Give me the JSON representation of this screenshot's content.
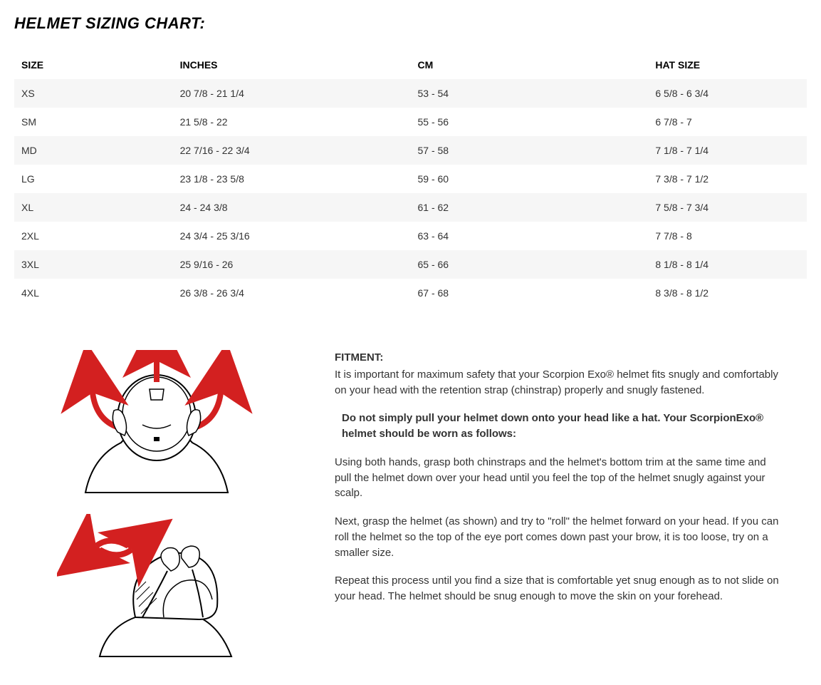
{
  "title": "HELMET SIZING CHART:",
  "table": {
    "columns": [
      "SIZE",
      "INCHES",
      "CM",
      "HAT SIZE"
    ],
    "rows": [
      [
        "XS",
        "20 7/8 - 21 1/4",
        "53 - 54",
        "6 5/8 - 6 3/4"
      ],
      [
        "SM",
        "21 5/8 - 22",
        "55 - 56",
        "6 7/8 - 7"
      ],
      [
        "MD",
        "22 7/16 - 22 3/4",
        "57 - 58",
        "7 1/8 - 7 1/4"
      ],
      [
        "LG",
        "23 1/8 - 23 5/8",
        "59 - 60",
        "7 3/8 - 7 1/2"
      ],
      [
        "XL",
        "24 - 24 3/8",
        "61 - 62",
        "7 5/8 - 7 3/4"
      ],
      [
        "2XL",
        "24 3/4 - 25 3/16",
        "63 - 64",
        "7 7/8 - 8"
      ],
      [
        "3XL",
        "25 9/16 - 26",
        "65 - 66",
        "8 1/8 - 8 1/4"
      ],
      [
        "4XL",
        "26 3/8 - 26 3/4",
        "67 - 68",
        "8 3/8 - 8 1/2"
      ]
    ],
    "header_bg": "#ffffff",
    "row_odd_bg": "#f6f6f6",
    "row_even_bg": "#ffffff"
  },
  "fitment": {
    "heading": "FITMENT:",
    "intro": "It is important for maximum safety that your Scorpion Exo® helmet fits snugly and comfortably on your head with the retention strap (chinstrap) properly and snugly fastened.",
    "warn": "Do not simply pull your helmet down onto your head like a hat. Your ScorpionExo® helmet should be worn as follows:",
    "p1": "Using both hands, grasp both chinstraps and the helmet's bottom trim at the same time and pull the helmet down over your head until you feel the top of the helmet snugly against your scalp.",
    "p2": "Next, grasp the helmet (as shown) and try to \"roll\" the helmet forward on your head. If you can roll the helmet so the top of the eye port comes down past your brow, it is too loose, try on a smaller size.",
    "p3": "Repeat this process until you find a size that is comfortable yet snug enough as to not slide on your head. The helmet should be snug enough to move the skin on your forehead."
  },
  "diagram": {
    "arrow_color": "#d32020",
    "stroke_color": "#000000",
    "fill_color": "#ffffff"
  }
}
